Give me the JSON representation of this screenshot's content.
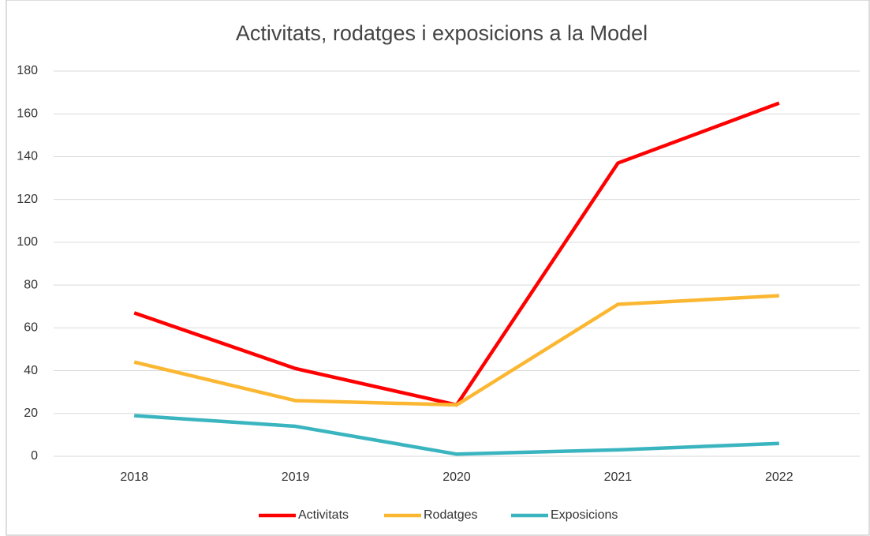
{
  "chart_data": {
    "type": "line",
    "title": "Activitats, rodatges i exposicions a la Model",
    "categories": [
      "2018",
      "2019",
      "2020",
      "2021",
      "2022"
    ],
    "series": [
      {
        "name": "Activitats",
        "color": "#ff0000",
        "values": [
          67,
          41,
          24,
          137,
          165
        ]
      },
      {
        "name": "Rodatges",
        "color": "#fbb731",
        "values": [
          44,
          26,
          24,
          71,
          75
        ]
      },
      {
        "name": "Exposicions",
        "color": "#3ab5c0",
        "values": [
          19,
          14,
          1,
          3,
          6
        ]
      }
    ],
    "ylim": [
      0,
      180
    ],
    "yticks": [
      0,
      20,
      40,
      60,
      80,
      100,
      120,
      140,
      160,
      180
    ],
    "grid": true,
    "legend": "bottom"
  }
}
